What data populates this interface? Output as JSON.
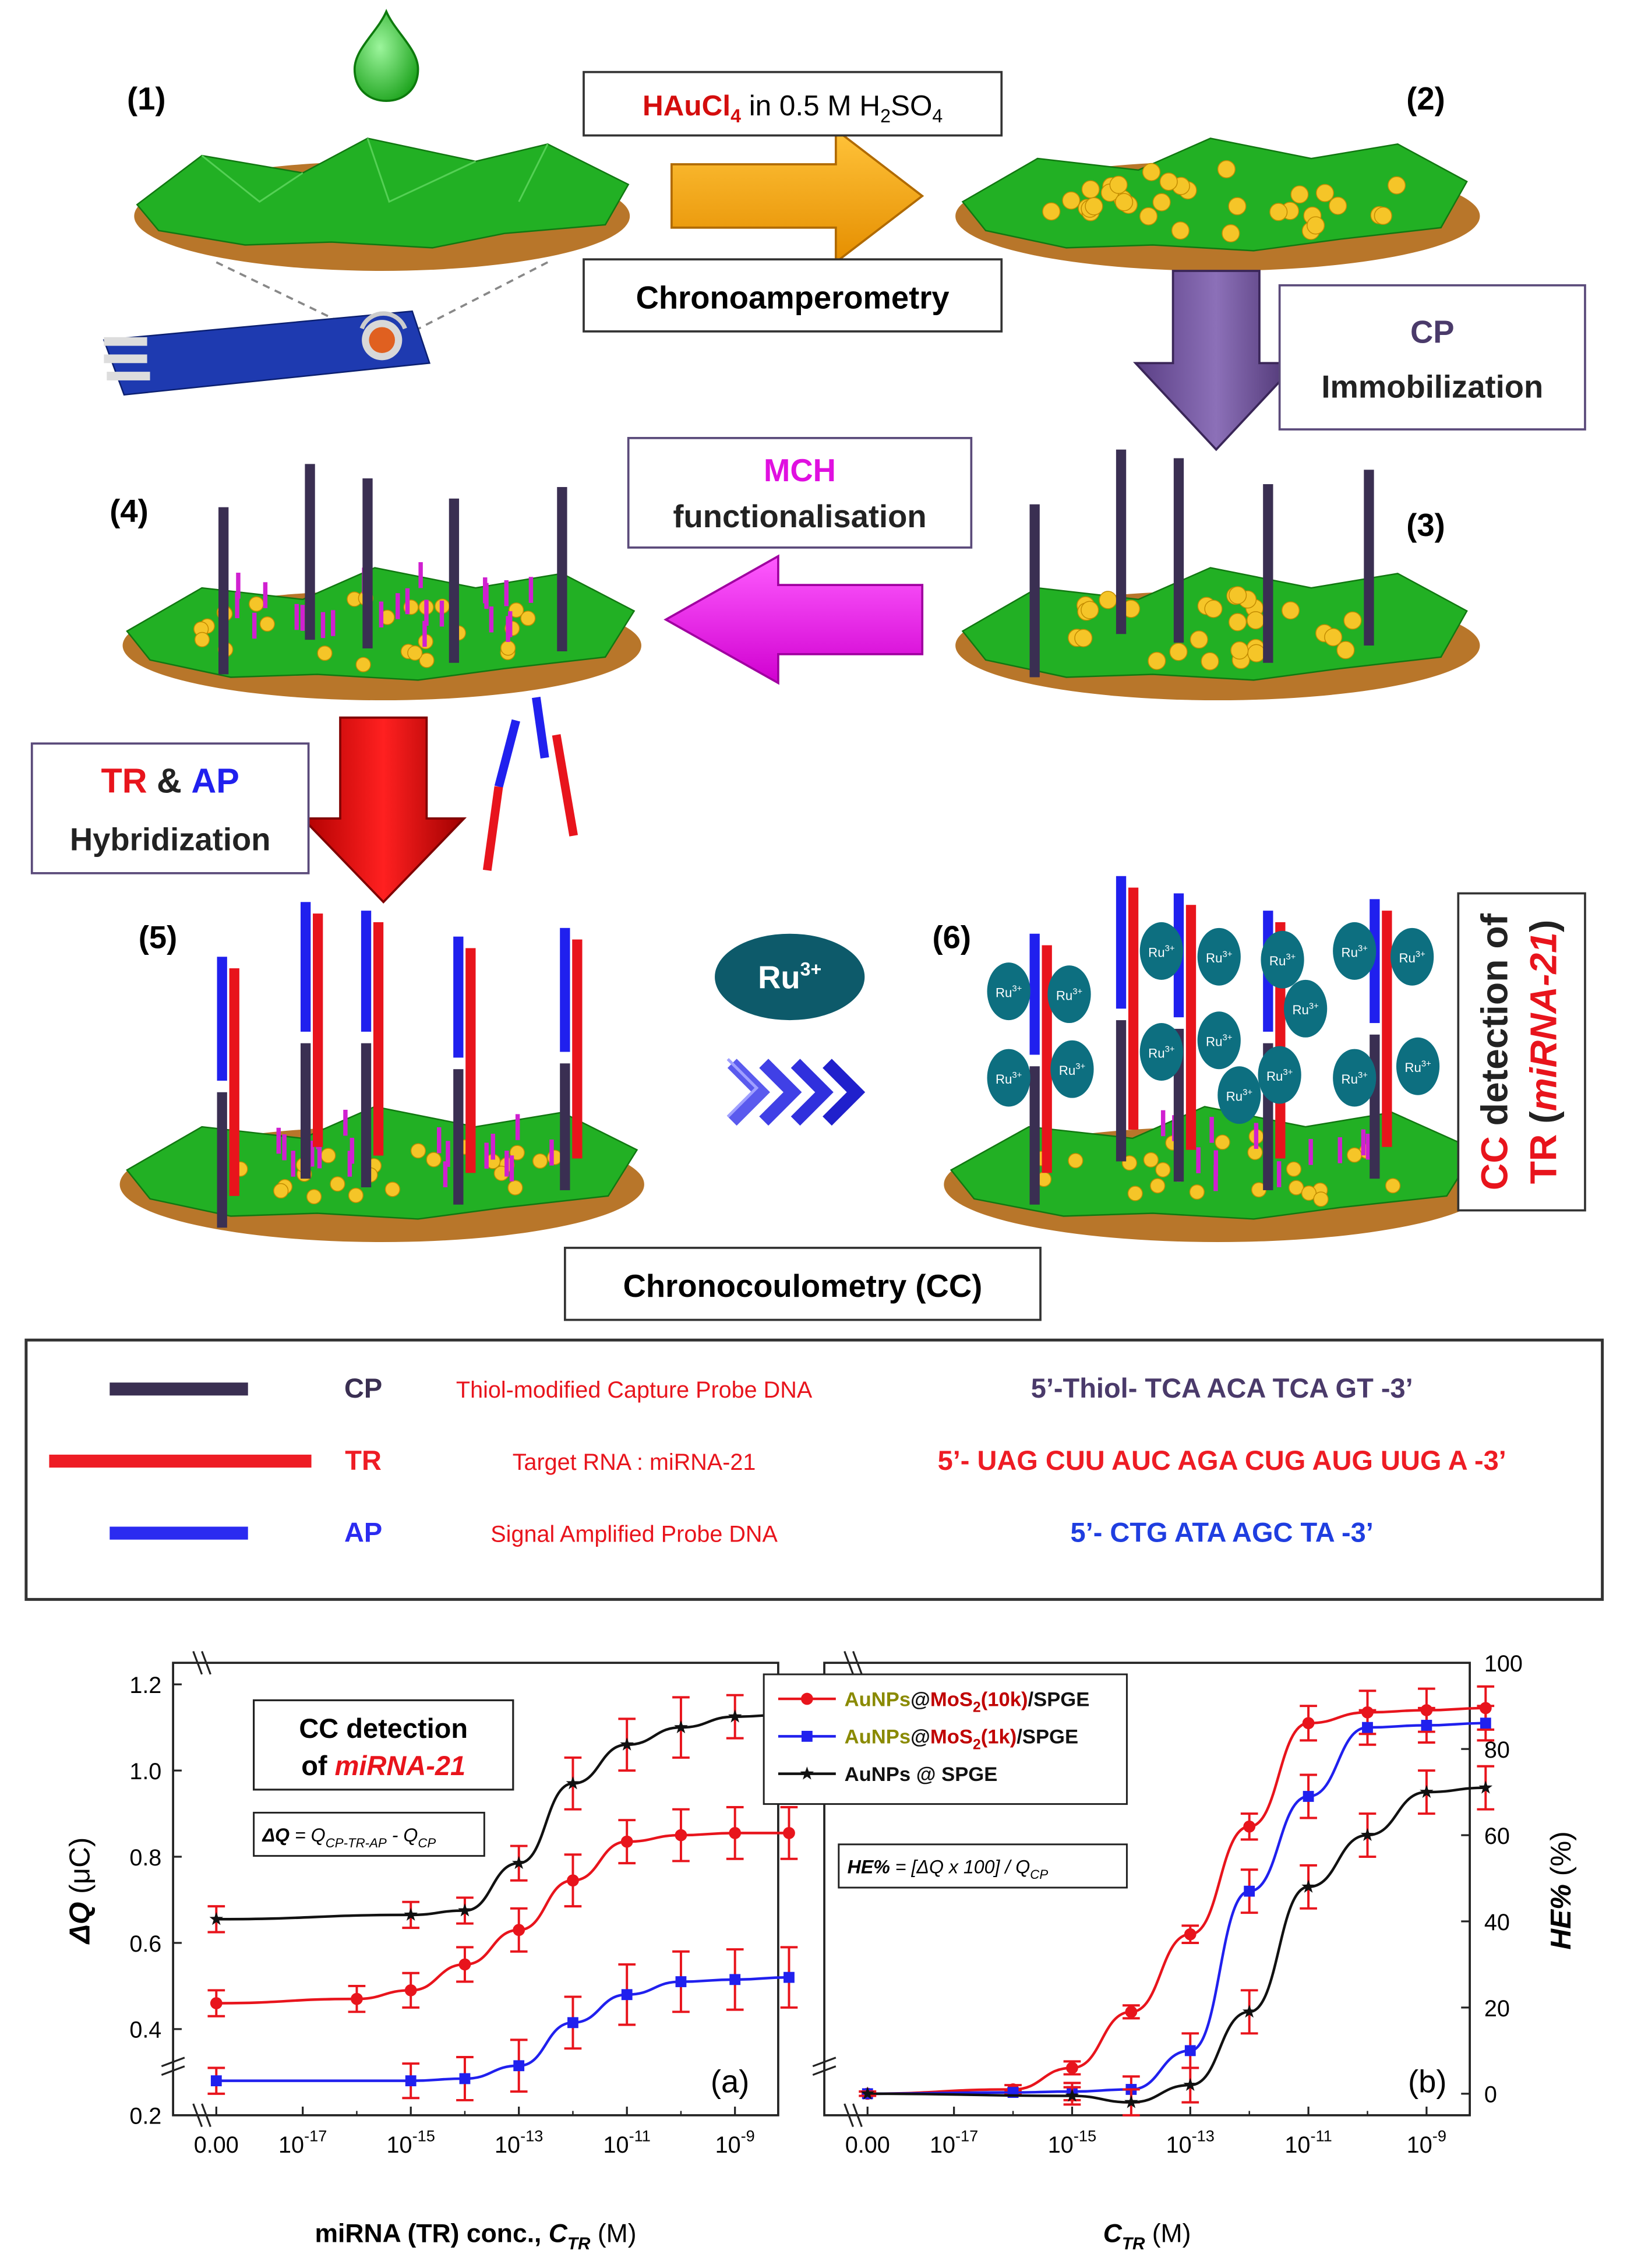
{
  "scheme": {
    "steps": [
      "(1)",
      "(2)",
      "(3)",
      "(4)",
      "(5)",
      "(6)"
    ],
    "reagent_box": {
      "hau": "HAuCl",
      "hau_sub": "4",
      "rest": " in 0.5 M H",
      "h2_sub": "2",
      "so": "SO",
      "so_sub": "4"
    },
    "chronoamperometry": "Chronoamperometry",
    "cp_box": {
      "line1": "CP",
      "line2": "Immobilization"
    },
    "mch_box": {
      "line1": "MCH",
      "line2": "functionalisation"
    },
    "hyb_box": {
      "tr": "TR",
      "amp": " & ",
      "ap": "AP",
      "line2": "Hybridization"
    },
    "ru_label": "Ru",
    "ru_sup": "3+",
    "ru_small": "Ru",
    "ru_small_sup": "3+",
    "chronocoulometry": "Chronocoulometry (CC)",
    "cc_side": {
      "cc": "CC",
      "detection_of": " detection of",
      "tr": "TR",
      "open": " (",
      "mirna": "miRNA-21",
      "close": ")"
    }
  },
  "legend": {
    "rows": [
      {
        "abbr": "CP",
        "desc": "Thiol-modified Capture Probe DNA",
        "seq": "5’-Thiol- TCA ACA TCA GT -3’",
        "color": "#3a2f52",
        "seq_color": "#4a3a6a"
      },
      {
        "abbr": "TR",
        "desc": "Target RNA : miRNA-21",
        "seq": "5’- UAG CUU AUC AGA CUG AUG UUG A -3’",
        "color": "#ee1c24",
        "seq_color": "#ee1c24"
      },
      {
        "abbr": "AP",
        "desc": "Signal Amplified Probe DNA",
        "seq": "5’- CTG ATA AGC TA -3’",
        "color": "#2b2bf0",
        "seq_color": "#1f3ee0"
      }
    ]
  },
  "colors": {
    "red": "#e8141c",
    "blue": "#2020ee",
    "black": "#111111",
    "green": "#22b024",
    "gold": "#f5c528",
    "brown": "#b8762a",
    "purple": "#6a4f93",
    "magenta": "#ee10ee",
    "orange": "#f5a20a",
    "darkred": "#d40d0d",
    "teal": "#0d5a6a"
  },
  "chart_data": [
    {
      "type": "line",
      "panel": "(a)",
      "title": "CC detection of miRNA-21",
      "title_line1": "CC detection",
      "title_line2_prefix": "of ",
      "title_line2_em": "miRNA-21",
      "formula": {
        "lhs": "ΔQ",
        "eq": " = Q",
        "sub1": "CP-TR-AP",
        "minus": " - Q",
        "sub2": "CP"
      },
      "ylabel": {
        "sym": "ΔQ",
        "unit": " (μC)"
      },
      "xlabel": {
        "text": "miRNA (TR) conc., ",
        "sym": "C",
        "sub": "TR",
        "unit": " (M)"
      },
      "ylim": [
        0.2,
        1.25
      ],
      "yticks": [
        "0.2",
        "0.4",
        "0.6",
        "0.8",
        "1.0",
        "1.2"
      ],
      "xticks": [
        "0.00",
        "10",
        "10",
        "10",
        "10",
        "10"
      ],
      "xtick_exps": [
        "",
        "-17",
        "-15",
        "-13",
        "-11",
        "-9"
      ],
      "x": [
        -18,
        -16,
        -15,
        -14,
        -13,
        -12,
        -11,
        -10,
        -9,
        -8
      ],
      "series": [
        {
          "name": "AuNPs@SPGE",
          "marker": "star",
          "color": "#111111",
          "values": [
            0.655,
            null,
            0.665,
            0.675,
            0.785,
            0.97,
            1.06,
            1.1,
            1.125,
            1.13
          ],
          "errors": [
            0.03,
            null,
            0.03,
            0.03,
            0.04,
            0.06,
            0.06,
            0.07,
            0.05,
            0.05
          ],
          "x0_value": 0.655
        },
        {
          "name": "AuNPs@MoS2(10k)/SPGE",
          "marker": "circle",
          "color": "#e8141c",
          "values": [
            0.46,
            0.47,
            0.49,
            0.55,
            0.63,
            0.745,
            0.835,
            0.85,
            0.855,
            0.855
          ],
          "errors": [
            0.03,
            0.03,
            0.04,
            0.04,
            0.05,
            0.06,
            0.05,
            0.06,
            0.06,
            0.06
          ]
        },
        {
          "name": "AuNPs@MoS2(1k)/SPGE",
          "marker": "square",
          "color": "#2020ee",
          "values": [
            0.28,
            null,
            0.28,
            0.285,
            0.315,
            0.415,
            0.48,
            0.51,
            0.515,
            0.52
          ],
          "errors": [
            0.03,
            null,
            0.04,
            0.05,
            0.06,
            0.06,
            0.07,
            0.07,
            0.07,
            0.07
          ]
        }
      ]
    },
    {
      "type": "line",
      "panel": "(b)",
      "formula": {
        "lhs": "HE%",
        "eq": " = [",
        "dq": "ΔQ",
        "times": " x 100] / Q",
        "sub": "CP"
      },
      "ylabel": {
        "sym": "HE%",
        "unit": " (%)"
      },
      "xlabel": {
        "sym": "C",
        "sub": "TR",
        "unit": " (M)"
      },
      "ylim": [
        -5,
        100
      ],
      "yticks": [
        "0",
        "20",
        "40",
        "60",
        "80",
        "100"
      ],
      "xticks": [
        "0.00",
        "10",
        "10",
        "10",
        "10",
        "10"
      ],
      "xtick_exps": [
        "",
        "-17",
        "-15",
        "-13",
        "-11",
        "-9"
      ],
      "x": [
        -18,
        -16,
        -15,
        -14,
        -13,
        -12,
        -11,
        -10,
        -9,
        -8
      ],
      "legend": [
        {
          "prefix": "AuNPs",
          "at": "@",
          "mo": "MoS",
          "sub": "2",
          "k": "(10k)",
          "suffix": "/SPGE",
          "color": "#e8141c",
          "marker": "circle"
        },
        {
          "prefix": "AuNPs",
          "at": "@",
          "mo": "MoS",
          "sub": "2",
          "k": "(1k)",
          "suffix": "/SPGE",
          "color": "#2020ee",
          "marker": "square"
        },
        {
          "prefix": "AuNPs @ SPGE",
          "at": "",
          "mo": "",
          "sub": "",
          "k": "",
          "suffix": "",
          "color": "#111111",
          "marker": "star"
        }
      ],
      "series": [
        {
          "name": "AuNPs@MoS2(10k)/SPGE",
          "marker": "circle",
          "color": "#e8141c",
          "values": [
            0,
            1,
            6,
            19,
            37,
            62,
            86,
            88.5,
            89,
            89.5
          ],
          "errors": [
            0.5,
            1,
            1.5,
            1.5,
            2,
            3,
            4,
            5,
            5,
            5
          ]
        },
        {
          "name": "AuNPs@MoS2(1k)/SPGE",
          "marker": "square",
          "color": "#2020ee",
          "values": [
            0,
            0.3,
            0.5,
            1,
            10,
            47,
            69,
            85,
            85.5,
            86
          ],
          "errors": [
            0.5,
            0.5,
            2,
            3,
            4,
            5,
            5,
            4,
            4,
            4
          ]
        },
        {
          "name": "AuNPs@SPGE",
          "marker": "star",
          "color": "#111111",
          "values": [
            0,
            null,
            -0.5,
            -2,
            2,
            19,
            48,
            60,
            70,
            71
          ],
          "errors": [
            0.5,
            null,
            2,
            3,
            4,
            5,
            5,
            5,
            5,
            5
          ]
        }
      ]
    }
  ]
}
